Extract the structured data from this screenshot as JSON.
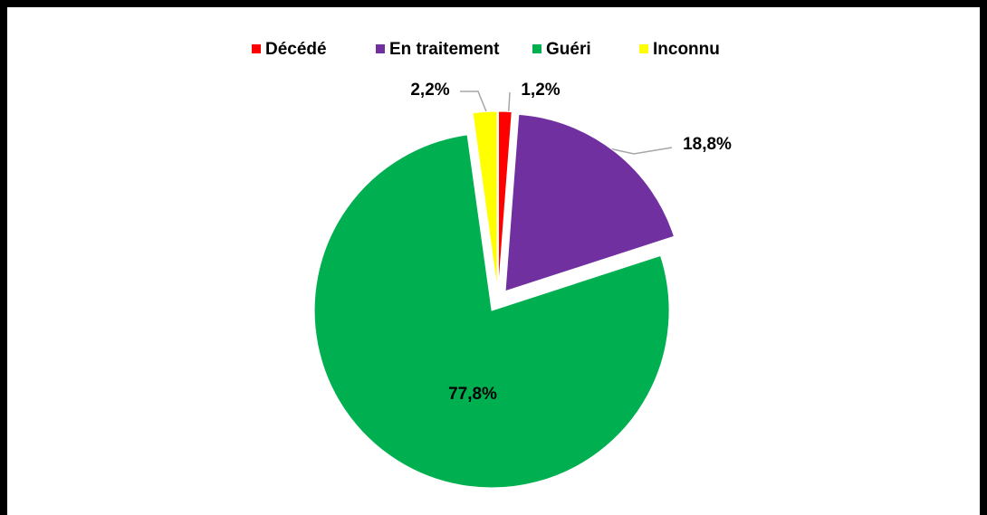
{
  "chart_data": {
    "type": "pie",
    "categories": [
      "Décédé",
      "En traitement",
      "Guéri",
      "Inconnu"
    ],
    "values": [
      1.2,
      18.8,
      77.8,
      2.2
    ],
    "value_labels": [
      "1,2%",
      "18,8%",
      "77,8%",
      "2,2%"
    ],
    "colors": [
      "#ff0000",
      "#7030a0",
      "#00b050",
      "#ffff00"
    ],
    "legend": "top"
  }
}
